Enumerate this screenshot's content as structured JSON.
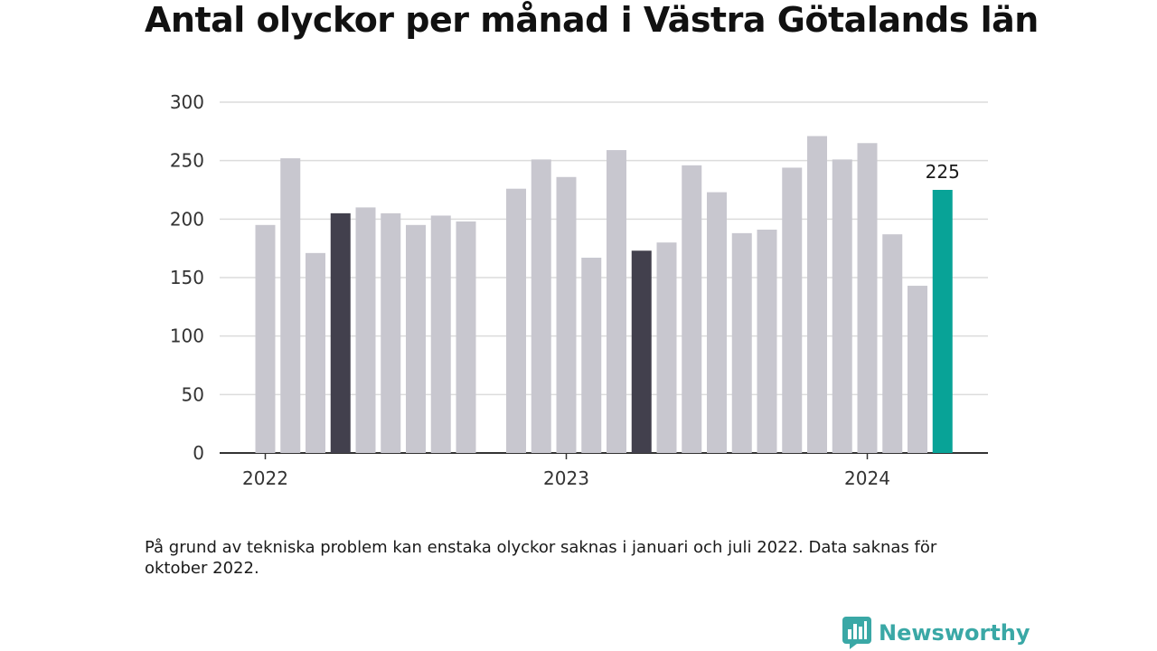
{
  "title": "Antal olyckor per månad i Västra Götalands län",
  "note": "På grund av tekniska problem kan enstaka olyckor saknas i januari och juli 2022. Data saknas för oktober 2022.",
  "brand": {
    "name": "Newsworthy",
    "icon": "newsworthy-logo-icon",
    "color": "#3aa8a6"
  },
  "colors": {
    "default_bar": "#c8c7cf",
    "highlight_bar": "#42404d",
    "latest_bar": "#08a397",
    "grid": "#dcdcdc",
    "axis": "#333333"
  },
  "chart_data": {
    "type": "bar",
    "title": "Antal olyckor per månad i Västra Götalands län",
    "xlabel": "",
    "ylabel": "",
    "ylim": [
      0,
      300
    ],
    "yticks": [
      "0",
      "50",
      "100",
      "150",
      "200",
      "250",
      "300"
    ],
    "xticks": [
      {
        "label": "2022",
        "month": "2022-01"
      },
      {
        "label": "2023",
        "month": "2023-01"
      },
      {
        "label": "2024",
        "month": "2024-01"
      }
    ],
    "grid": true,
    "bars": [
      {
        "month": "2022-01",
        "value": 195,
        "style": "default"
      },
      {
        "month": "2022-02",
        "value": 252,
        "style": "default"
      },
      {
        "month": "2022-03",
        "value": 171,
        "style": "default"
      },
      {
        "month": "2022-04",
        "value": 205,
        "style": "highlight"
      },
      {
        "month": "2022-05",
        "value": 210,
        "style": "default"
      },
      {
        "month": "2022-06",
        "value": 205,
        "style": "default"
      },
      {
        "month": "2022-07",
        "value": 195,
        "style": "default"
      },
      {
        "month": "2022-08",
        "value": 203,
        "style": "default"
      },
      {
        "month": "2022-09",
        "value": 198,
        "style": "default"
      },
      {
        "month": "2022-11",
        "value": 226,
        "style": "default"
      },
      {
        "month": "2022-12",
        "value": 251,
        "style": "default"
      },
      {
        "month": "2023-01",
        "value": 236,
        "style": "default"
      },
      {
        "month": "2023-02",
        "value": 167,
        "style": "default"
      },
      {
        "month": "2023-03",
        "value": 259,
        "style": "default"
      },
      {
        "month": "2023-04",
        "value": 173,
        "style": "highlight"
      },
      {
        "month": "2023-05",
        "value": 180,
        "style": "default"
      },
      {
        "month": "2023-06",
        "value": 246,
        "style": "default"
      },
      {
        "month": "2023-07",
        "value": 223,
        "style": "default"
      },
      {
        "month": "2023-08",
        "value": 188,
        "style": "default"
      },
      {
        "month": "2023-09",
        "value": 191,
        "style": "default"
      },
      {
        "month": "2023-10",
        "value": 244,
        "style": "default"
      },
      {
        "month": "2023-11",
        "value": 271,
        "style": "default"
      },
      {
        "month": "2023-12",
        "value": 251,
        "style": "default"
      },
      {
        "month": "2024-01",
        "value": 265,
        "style": "default"
      },
      {
        "month": "2024-02",
        "value": 187,
        "style": "default"
      },
      {
        "month": "2024-03",
        "value": 143,
        "style": "default"
      },
      {
        "month": "2024-04",
        "value": 225,
        "style": "latest",
        "label": "225"
      }
    ]
  }
}
